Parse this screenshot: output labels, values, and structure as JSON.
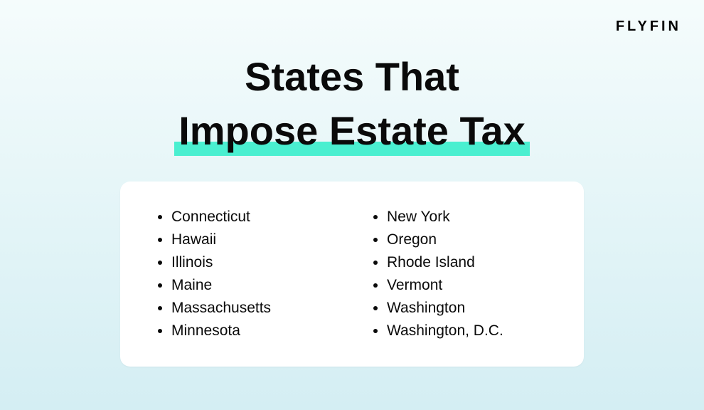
{
  "brand": {
    "logo_text": "FLYFIN"
  },
  "title": {
    "line1": "States That",
    "line2_highlighted": "Impose Estate Tax"
  },
  "styling": {
    "background_gradient_start": "#f5fcfc",
    "background_gradient_end": "#d4eef3",
    "highlight_color": "#4aefd0",
    "card_background": "#ffffff",
    "text_color": "#0a0a0a",
    "title_fontsize": 56,
    "list_fontsize": 21,
    "card_border_radius": 14
  },
  "states": {
    "column1": [
      "Connecticut",
      "Hawaii",
      "Illinois",
      "Maine",
      "Massachusetts",
      "Minnesota"
    ],
    "column2": [
      "New York",
      "Oregon",
      "Rhode Island",
      "Vermont",
      "Washington",
      "Washington, D.C."
    ]
  }
}
